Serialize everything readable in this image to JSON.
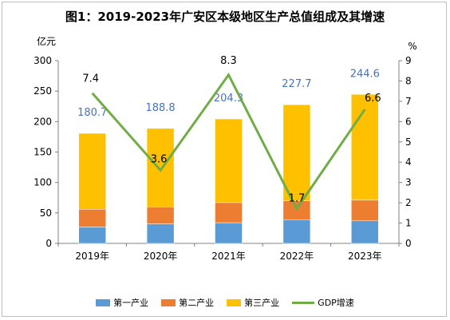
{
  "title": "图1：2019-2023年广安区本级地区生产总值组成及其增速",
  "chart_data": {
    "type": "bar",
    "stacked": true,
    "categories": [
      "2019年",
      "2020年",
      "2021年",
      "2022年",
      "2023年"
    ],
    "series": [
      {
        "name": "第一产业",
        "color": "#5b9bd5",
        "values": [
          27,
          32,
          34,
          39,
          37
        ]
      },
      {
        "name": "第二产业",
        "color": "#ed7d31",
        "values": [
          29,
          28,
          33,
          31,
          34
        ]
      },
      {
        "name": "第三产业",
        "color": "#ffc000",
        "values": [
          124.7,
          128.8,
          137.3,
          157.7,
          173.6
        ]
      }
    ],
    "totals": [
      180.7,
      188.8,
      204.3,
      227.7,
      244.6
    ],
    "totals_color": "#4472c4",
    "line_series": {
      "name": "GDP增速",
      "color": "#70ad47",
      "values": [
        7.4,
        3.6,
        8.3,
        1.7,
        6.6
      ]
    },
    "y_left": {
      "label": "亿元",
      "min": 0,
      "max": 300,
      "ticks": [
        0,
        50,
        100,
        150,
        200,
        250,
        300
      ]
    },
    "y_right": {
      "label": "%",
      "min": 0,
      "max": 9,
      "ticks": [
        0,
        1,
        2,
        3,
        4,
        5,
        6,
        7,
        8,
        9
      ]
    },
    "grid": false,
    "legend_position": "bottom"
  }
}
